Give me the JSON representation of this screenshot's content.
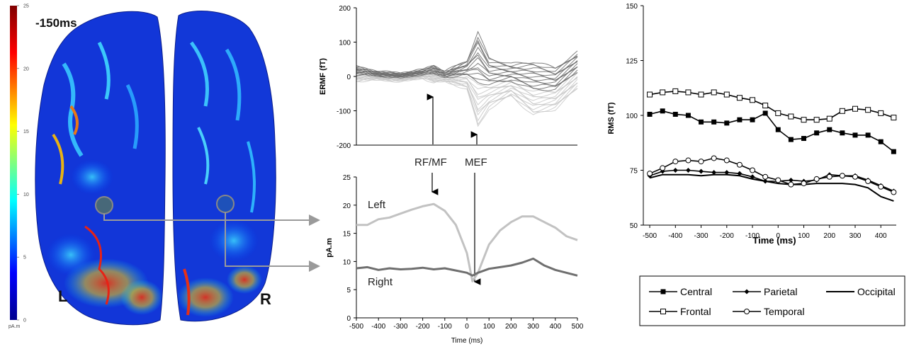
{
  "brain": {
    "time_label": "-150ms",
    "left_label": "L",
    "right_label": "R",
    "colorbar": {
      "ticks": [
        "25",
        "20",
        "15",
        "10",
        "5",
        "0"
      ],
      "unit": "pA.m",
      "min": 0,
      "max": 25
    }
  },
  "annotations": {
    "rf_mf": "RF/MF",
    "mef": "MEF"
  },
  "chart_data": [
    {
      "type": "line",
      "title": "",
      "xlabel": "",
      "ylabel": "ERMF (fT)",
      "xlim": [
        -500,
        500
      ],
      "ylim": [
        -200,
        200
      ],
      "yticks": [
        "200",
        "100",
        "0",
        "-100",
        "-200"
      ],
      "grid": false,
      "series": [
        {
          "x": [
            -500,
            -400,
            -300,
            -200,
            -150,
            -100,
            0,
            50,
            100,
            200,
            300,
            400,
            500
          ],
          "envelope_upper": [
            30,
            15,
            10,
            20,
            35,
            15,
            50,
            140,
            60,
            40,
            50,
            30,
            75
          ],
          "envelope_lower": [
            -15,
            -10,
            -15,
            -5,
            -20,
            -15,
            -40,
            -160,
            -100,
            -60,
            -120,
            -100,
            -40
          ]
        }
      ]
    },
    {
      "type": "line",
      "title": "",
      "xlabel": "Time (ms)",
      "ylabel": "pA.m",
      "xlim": [
        -500,
        500
      ],
      "ylim": [
        0,
        25
      ],
      "xticks": [
        "-500",
        "-400",
        "-300",
        "-200",
        "-100",
        "0",
        "100",
        "200",
        "300",
        "400",
        "500"
      ],
      "yticks": [
        "25",
        "20",
        "15",
        "10",
        "5",
        "0"
      ],
      "series": [
        {
          "name": "Left",
          "x": [
            -500,
            -450,
            -400,
            -350,
            -300,
            -250,
            -200,
            -150,
            -100,
            -50,
            0,
            25,
            50,
            100,
            150,
            200,
            250,
            300,
            350,
            400,
            450,
            500
          ],
          "values": [
            16.5,
            16.5,
            17.5,
            17.8,
            18.5,
            19.2,
            19.8,
            20.2,
            19.0,
            16.5,
            11.5,
            6.5,
            8.0,
            13.0,
            15.5,
            17.0,
            18.0,
            18.0,
            17.0,
            16.0,
            14.5,
            13.8
          ],
          "color": "#c2c2c2"
        },
        {
          "name": "Right",
          "x": [
            -500,
            -450,
            -400,
            -350,
            -300,
            -250,
            -200,
            -150,
            -100,
            -50,
            0,
            25,
            50,
            100,
            150,
            200,
            250,
            300,
            350,
            400,
            450,
            500
          ],
          "values": [
            8.8,
            9.0,
            8.5,
            8.8,
            8.6,
            8.7,
            8.9,
            8.6,
            8.8,
            8.4,
            8.0,
            7.5,
            8.0,
            8.7,
            9.0,
            9.3,
            9.8,
            10.5,
            9.3,
            8.5,
            8.0,
            7.5
          ],
          "color": "#6f6f6f"
        }
      ]
    },
    {
      "type": "line",
      "title": "",
      "xlabel": "Time (ms)",
      "ylabel": "RMS (fT)",
      "xlim": [
        -525,
        460
      ],
      "ylim": [
        50,
        150
      ],
      "xticks": [
        "-500",
        "-400",
        "-300",
        "-200",
        "-100",
        "0",
        "100",
        "200",
        "300",
        "400"
      ],
      "yticks": [
        "150",
        "125",
        "100",
        "75",
        "50"
      ],
      "legend_position": "bottom",
      "series": [
        {
          "name": "Central",
          "marker": "square-filled",
          "x": [
            -500,
            -450,
            -400,
            -350,
            -300,
            -250,
            -200,
            -150,
            -100,
            -50,
            0,
            50,
            100,
            150,
            200,
            250,
            300,
            350,
            400,
            450
          ],
          "values": [
            100.5,
            102,
            100.5,
            100,
            97,
            97,
            96.5,
            98,
            98,
            101,
            93.5,
            89,
            89.5,
            92,
            93.5,
            92,
            91,
            91,
            88,
            83.5
          ]
        },
        {
          "name": "Parietal",
          "marker": "diamond-filled",
          "x": [
            -500,
            -450,
            -400,
            -350,
            -300,
            -250,
            -200,
            -150,
            -100,
            -50,
            0,
            50,
            100,
            150,
            200,
            250,
            300,
            350,
            400,
            450
          ],
          "values": [
            72.5,
            74.5,
            75,
            75,
            74.5,
            74,
            74,
            73.5,
            72,
            70,
            70,
            70.5,
            70,
            70.5,
            73,
            72.5,
            72.5,
            70.5,
            68,
            65.5
          ]
        },
        {
          "name": "Occipital",
          "marker": "none",
          "x": [
            -500,
            -450,
            -400,
            -350,
            -300,
            -250,
            -200,
            -150,
            -100,
            -50,
            0,
            50,
            100,
            150,
            200,
            250,
            300,
            350,
            400,
            450
          ],
          "values": [
            71.5,
            73,
            73,
            73,
            72.5,
            73,
            73,
            72.5,
            71,
            70,
            69,
            68.5,
            68.5,
            69,
            69,
            69,
            68.5,
            67,
            63,
            61
          ]
        },
        {
          "name": "Frontal",
          "marker": "square-open",
          "x": [
            -500,
            -450,
            -400,
            -350,
            -300,
            -250,
            -200,
            -150,
            -100,
            -50,
            0,
            50,
            100,
            150,
            200,
            250,
            300,
            350,
            400,
            450
          ],
          "values": [
            109.5,
            110.5,
            111,
            110.5,
            109.5,
            110.5,
            109.5,
            108,
            107,
            104.5,
            101,
            99.5,
            98,
            98,
            98.5,
            102,
            103,
            102.5,
            101,
            99
          ]
        },
        {
          "name": "Temporal",
          "marker": "circle-open",
          "x": [
            -500,
            -450,
            -400,
            -350,
            -300,
            -250,
            -200,
            -150,
            -100,
            -50,
            0,
            50,
            100,
            150,
            200,
            250,
            300,
            350,
            400,
            450
          ],
          "values": [
            73.5,
            76,
            79,
            79.5,
            79,
            80.5,
            79.5,
            77.5,
            75,
            72,
            70.5,
            68.5,
            69,
            71,
            72,
            72.5,
            72,
            70,
            67.5,
            65
          ]
        }
      ]
    }
  ]
}
